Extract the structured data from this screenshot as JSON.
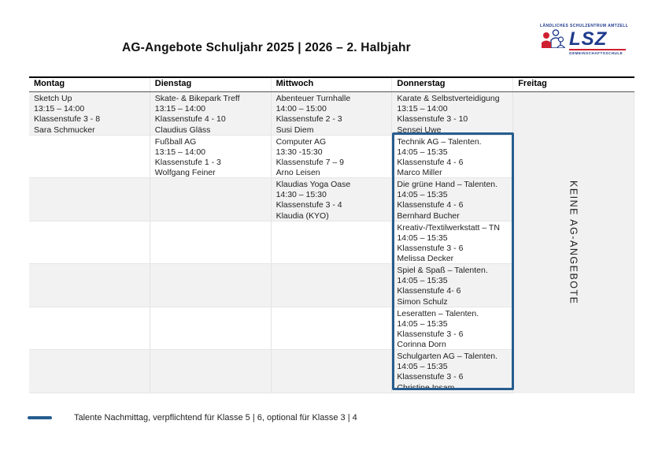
{
  "page": {
    "title": "AG-Angebote Schuljahr 2025 | 2026 – 2. Halbjahr"
  },
  "logo": {
    "top_text": "LÄNDLICHES SCHULZENTRUM AMTZELL",
    "acronym": "LSZ",
    "bottom_text": "GEMEINSCHAFTSSCHULE"
  },
  "table": {
    "headers": [
      "Montag",
      "Dienstag",
      "Mittwoch",
      "Donnerstag",
      "Freitag"
    ],
    "rows": [
      {
        "cells": [
          [
            "Sketch Up",
            "13:15 – 14:00",
            "Klassenstufe 3 - 8",
            "Sara Schmucker"
          ],
          [
            "Skate- & Bikepark Treff",
            "13:15 – 14:00",
            "Klassenstufe 4 - 10",
            "Claudius Gläss"
          ],
          [
            "Abenteuer Turnhalle",
            "14:00 – 15:00",
            "Klassenstufe 2 - 3",
            "Susi Diem"
          ],
          [
            "Karate & Selbstverteidigung",
            "13:15 – 14:00",
            "Klassenstufe 3 - 10",
            "Sensei Uwe"
          ]
        ]
      },
      {
        "cells": [
          [],
          [
            "Fußball AG",
            "13:15 – 14:00",
            "Klassenstufe 1 - 3",
            "Wolfgang Feiner"
          ],
          [
            "Computer AG",
            "13:30 -15:30",
            "Klassenstufe 7 – 9",
            "Arno Leisen"
          ],
          [
            "Technik AG – Talenten.",
            "14:05 – 15:35",
            "Klassenstufe 4 - 6",
            "Marco Miller"
          ]
        ]
      },
      {
        "cells": [
          [],
          [],
          [
            "Klaudias Yoga Oase",
            "14:30 – 15:30",
            "Klassenstufe 3 - 4",
            "Klaudia (KYO)"
          ],
          [
            "Die grüne Hand – Talenten.",
            "14:05 – 15:35",
            "Klassenstufe 4 - 6",
            "Bernhard Bucher"
          ]
        ]
      },
      {
        "cells": [
          [],
          [],
          [],
          [
            "Kreativ-/Textilwerkstatt – TN",
            "14:05 – 15:35",
            "Klassenstufe 3 - 6",
            "Melissa Decker"
          ]
        ]
      },
      {
        "cells": [
          [],
          [],
          [],
          [
            "Spiel & Spaß – Talenten.",
            "14:05 – 15:35",
            "Klassenstufe 4- 6",
            "Simon Schulz"
          ]
        ]
      },
      {
        "cells": [
          [],
          [],
          [],
          [
            "Leseratten – Talenten.",
            "14:05 – 15:35",
            "Klassenstufe 3 - 6",
            "Corinna Dorn"
          ]
        ]
      },
      {
        "cells": [
          [],
          [],
          [],
          [
            "Schulgarten AG – Talenten.",
            "14:05 – 15:35",
            "Klassenstufe 3 - 6",
            "Christine Insam"
          ]
        ]
      }
    ],
    "friday_note": "KEINE AG-ANGEBOTE"
  },
  "legend": {
    "text": "Talente Nachmittag, verpflichtend für Klasse 5 | 6, optional für Klasse 3 | 4"
  },
  "colors": {
    "highlight": "#265d8f",
    "row_stripe": "#f2f2f2",
    "logo_navy": "#1e3a8c",
    "logo_red": "#cf2030"
  }
}
